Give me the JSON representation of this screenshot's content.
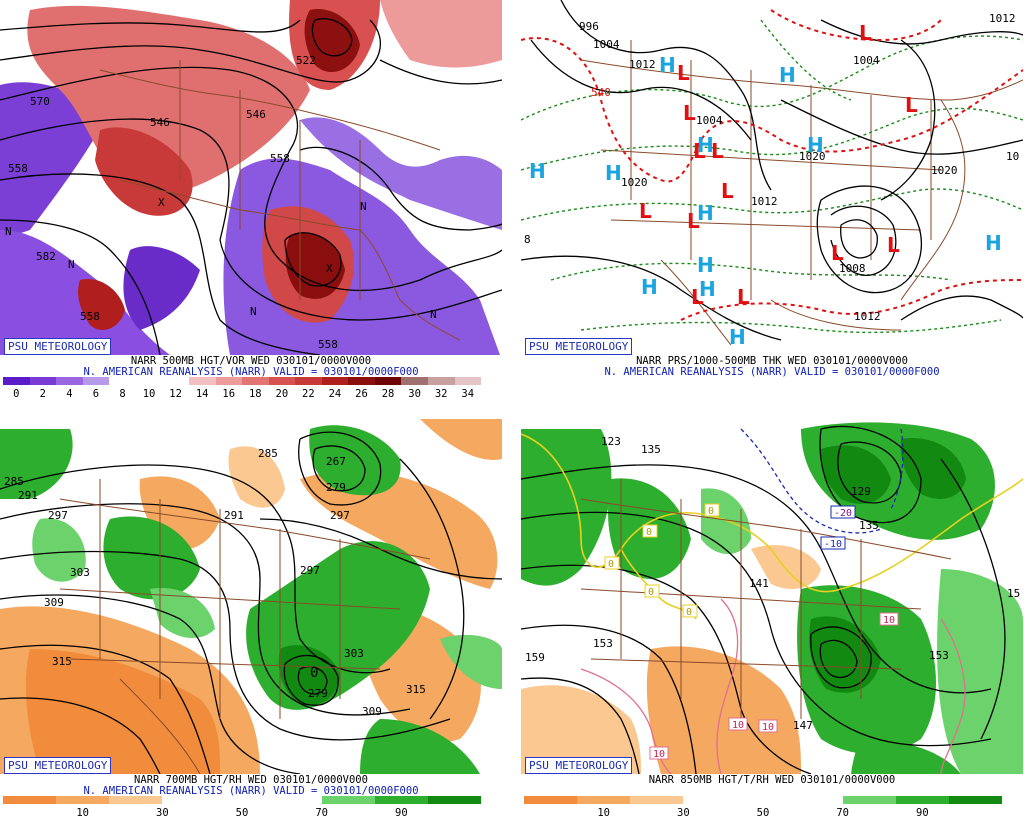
{
  "panels": [
    {
      "brand": "PSU METEOROLOGY",
      "caption1": "NARR 500MB HGT/VOR WED 030101/0000V000",
      "caption2": "N. AMERICAN REANALYSIS (NARR) VALID = 030101/0000F000",
      "colorbar": {
        "colors": [
          "#5a1cc9",
          "#7a3ad6",
          "#9a66e2",
          "#b79aea",
          "#ffffff",
          "#ffffff",
          "#ffffff",
          "#f2c0c0",
          "#ec9a9a",
          "#e27474",
          "#d85252",
          "#c83a3a",
          "#b01e1e",
          "#8a0e0e",
          "#6e0606",
          "#a07070",
          "#c8a0a0",
          "#e4c4c4"
        ],
        "ticks": [
          "0",
          "2",
          "4",
          "6",
          "8",
          "10",
          "12",
          "14",
          "16",
          "18",
          "20",
          "22",
          "24",
          "26",
          "28",
          "30",
          "32",
          "34"
        ]
      },
      "labels": [
        "570",
        "558",
        "546",
        "522",
        "546",
        "558",
        "582",
        "558",
        "558"
      ],
      "symbols": [
        "N",
        "N",
        "N",
        "N",
        "N",
        "X",
        "X"
      ]
    },
    {
      "brand": "PSU METEOROLOGY",
      "caption1": "NARR PRS/1000-500MB THK WED 030101/0000V000",
      "caption2": "N. AMERICAN REANALYSIS (NARR) VALID = 030101/0000F000",
      "labels": [
        "996",
        "1004",
        "1012",
        "1004",
        "1020",
        "1012",
        "1020",
        "1004",
        "1012",
        "1020",
        "1008",
        "540",
        "10",
        "1012",
        "8"
      ],
      "highs": [
        "H",
        "H",
        "H",
        "H",
        "H",
        "H",
        "H",
        "H",
        "H",
        "H",
        "H",
        "H"
      ],
      "lows": [
        "L",
        "L",
        "L",
        "L",
        "L",
        "L",
        "L",
        "L",
        "L",
        "L",
        "L",
        "L",
        "L"
      ]
    },
    {
      "brand": "PSU METEOROLOGY",
      "caption1": "NARR 700MB HGT/RH WED 030101/0000V000",
      "caption2": "N. AMERICAN REANALYSIS (NARR) VALID = 030101/0000F000",
      "colorbar": {
        "colors": [
          "#f08c3c",
          "#f5a860",
          "#fac890",
          "#ffffff",
          "#ffffff",
          "#ffffff",
          "#6cd26c",
          "#2eae2e",
          "#128a12"
        ],
        "ticks": [
          "10",
          "30",
          "50",
          "70",
          "90"
        ]
      },
      "labels": [
        "285",
        "291",
        "297",
        "303",
        "309",
        "315",
        "267",
        "279",
        "285",
        "291",
        "297",
        "303",
        "309",
        "315",
        "279",
        "297",
        "0"
      ]
    },
    {
      "brand": "PSU METEOROLOGY",
      "caption1": "NARR 850MB HGT/T/RH WED 030101/0000V000",
      "colorbar": {
        "colors": [
          "#f08c3c",
          "#f5a860",
          "#fac890",
          "#ffffff",
          "#ffffff",
          "#ffffff",
          "#6cd26c",
          "#2eae2e",
          "#128a12"
        ],
        "ticks": [
          "10",
          "30",
          "50",
          "70",
          "90"
        ]
      },
      "labels": [
        "123",
        "135",
        "129",
        "135",
        "141",
        "147",
        "153",
        "159",
        "153",
        "15"
      ],
      "temps": [
        "0",
        "0",
        "0",
        "0",
        "0",
        "-20",
        "-10",
        "10",
        "10",
        "10",
        "10"
      ]
    }
  ]
}
